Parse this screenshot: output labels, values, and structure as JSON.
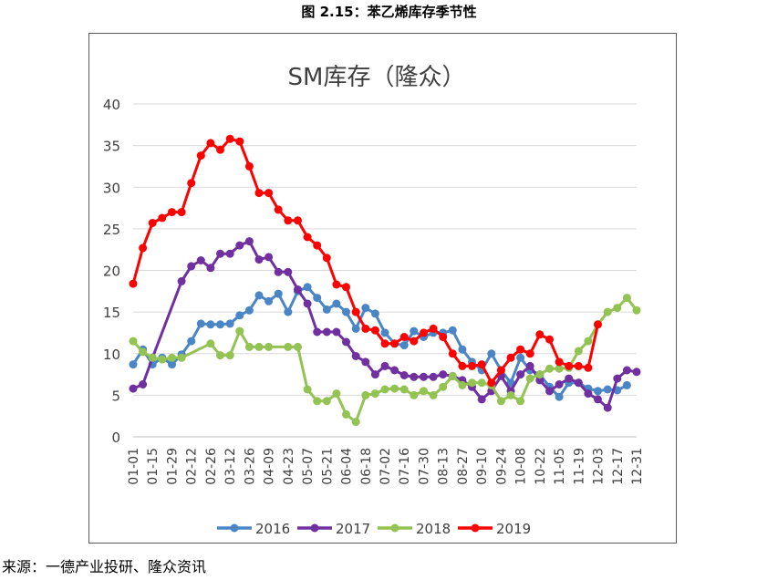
{
  "caption": "图 2.15：苯乙烯库存季节性",
  "source": "来源：一德产业投研、隆众资讯",
  "chart_data": {
    "type": "line",
    "title": "SM库存（隆众）",
    "xlabel": "",
    "ylabel": "",
    "ylim": [
      0,
      40
    ],
    "yticks": [
      "0",
      "5",
      "10",
      "15",
      "20",
      "25",
      "30",
      "35",
      "40"
    ],
    "grid": true,
    "legend_position": "bottom",
    "x_tick_labels": [
      "01-01",
      "01-15",
      "01-29",
      "02-12",
      "02-26",
      "03-12",
      "03-26",
      "04-09",
      "04-23",
      "05-07",
      "05-21",
      "06-04",
      "06-18",
      "07-02",
      "07-16",
      "07-30",
      "08-13",
      "08-27",
      "09-10",
      "09-24",
      "10-08",
      "10-22",
      "11-05",
      "11-19",
      "12-03",
      "12-17",
      "12-31"
    ],
    "series": [
      {
        "name": "2016",
        "color": "#4a86c5",
        "points": [
          [
            0,
            8.7
          ],
          [
            0.5,
            10.5
          ],
          [
            1,
            8.7
          ],
          [
            1.5,
            9.5
          ],
          [
            2,
            8.7
          ],
          [
            2.5,
            9.9
          ],
          [
            3,
            11.5
          ],
          [
            3.5,
            13.6
          ],
          [
            4,
            13.5
          ],
          [
            4.5,
            13.5
          ],
          [
            5,
            13.6
          ],
          [
            5.5,
            14.6
          ],
          [
            6,
            15.2
          ],
          [
            6.5,
            17
          ],
          [
            7,
            16.3
          ],
          [
            7.5,
            17.2
          ],
          [
            8,
            15
          ],
          [
            8.5,
            17.5
          ],
          [
            9,
            18
          ],
          [
            9.5,
            16.7
          ],
          [
            10,
            15.3
          ],
          [
            10.5,
            16
          ],
          [
            11,
            15
          ],
          [
            11.5,
            13
          ],
          [
            12,
            15.5
          ],
          [
            12.5,
            14.8
          ],
          [
            13,
            12.5
          ],
          [
            13.5,
            11.2
          ],
          [
            14,
            11
          ],
          [
            14.5,
            12.7
          ],
          [
            15,
            12
          ],
          [
            15.5,
            12.5
          ],
          [
            16,
            12.5
          ],
          [
            16.5,
            12.8
          ],
          [
            17,
            10.5
          ],
          [
            17.5,
            9
          ],
          [
            18,
            8
          ],
          [
            18.5,
            10
          ],
          [
            19,
            8
          ],
          [
            19.5,
            6.5
          ],
          [
            20,
            9.5
          ],
          [
            20.5,
            8
          ],
          [
            21,
            7.5
          ],
          [
            21.5,
            6
          ],
          [
            22,
            4.8
          ],
          [
            22.5,
            6.5
          ],
          [
            23,
            6.5
          ],
          [
            23.5,
            5.8
          ],
          [
            24,
            5.5
          ],
          [
            24.5,
            5.7
          ],
          [
            25,
            5.6
          ],
          [
            25.5,
            6.2
          ]
        ]
      },
      {
        "name": "2017",
        "color": "#7030a0",
        "points": [
          [
            0,
            5.8
          ],
          [
            0.5,
            6.3
          ],
          [
            1,
            9.5
          ],
          [
            2.5,
            18.7
          ],
          [
            3,
            20.5
          ],
          [
            3.5,
            21.2
          ],
          [
            4,
            20.3
          ],
          [
            4.5,
            22
          ],
          [
            5,
            22
          ],
          [
            5.5,
            23
          ],
          [
            6,
            23.5
          ],
          [
            6.5,
            21.3
          ],
          [
            7,
            21.6
          ],
          [
            7.5,
            19.8
          ],
          [
            8,
            19.8
          ],
          [
            8.5,
            17.7
          ],
          [
            9,
            16
          ],
          [
            9.5,
            12.6
          ],
          [
            10,
            12.6
          ],
          [
            10.5,
            12.6
          ],
          [
            11,
            11.4
          ],
          [
            11.5,
            9.7
          ],
          [
            12,
            9
          ],
          [
            12.5,
            7.5
          ],
          [
            13,
            8.5
          ],
          [
            13.5,
            8
          ],
          [
            14,
            7.4
          ],
          [
            14.5,
            7.2
          ],
          [
            15,
            7.2
          ],
          [
            15.5,
            7.2
          ],
          [
            16,
            7.5
          ],
          [
            16.5,
            7.3
          ],
          [
            17,
            6.8
          ],
          [
            17.5,
            6
          ],
          [
            18,
            4.5
          ],
          [
            18.5,
            5.5
          ],
          [
            19,
            7.3
          ],
          [
            19.5,
            5.5
          ],
          [
            20,
            7.5
          ],
          [
            20.5,
            8.5
          ],
          [
            21,
            6.8
          ],
          [
            21.5,
            5.5
          ],
          [
            22,
            6.3
          ],
          [
            22.5,
            7
          ],
          [
            23,
            6.5
          ],
          [
            23.5,
            5.2
          ],
          [
            24,
            4.5
          ],
          [
            24.5,
            3.5
          ],
          [
            25,
            7
          ],
          [
            25.5,
            8
          ],
          [
            26,
            7.8
          ]
        ]
      },
      {
        "name": "2018",
        "color": "#92c353",
        "points": [
          [
            0,
            11.5
          ],
          [
            0.5,
            10.2
          ],
          [
            1,
            9.5
          ],
          [
            1.5,
            9.3
          ],
          [
            2,
            9.5
          ],
          [
            2.5,
            9.5
          ],
          [
            4,
            11.2
          ],
          [
            4.5,
            9.8
          ],
          [
            5,
            9.8
          ],
          [
            5.5,
            12.7
          ],
          [
            6,
            10.8
          ],
          [
            6.5,
            10.8
          ],
          [
            7,
            10.8
          ],
          [
            8,
            10.8
          ],
          [
            8.5,
            10.8
          ],
          [
            9,
            5.7
          ],
          [
            9.5,
            4.3
          ],
          [
            10,
            4.3
          ],
          [
            10.5,
            5.2
          ],
          [
            11,
            2.7
          ],
          [
            11.5,
            1.8
          ],
          [
            12,
            5
          ],
          [
            12.5,
            5.2
          ],
          [
            13,
            5.7
          ],
          [
            13.5,
            5.8
          ],
          [
            14,
            5.7
          ],
          [
            14.5,
            5
          ],
          [
            15,
            5.5
          ],
          [
            15.5,
            5
          ],
          [
            16,
            6
          ],
          [
            16.5,
            7.3
          ],
          [
            17,
            6.2
          ],
          [
            17.5,
            6.5
          ],
          [
            18,
            6.5
          ],
          [
            18.5,
            6.2
          ],
          [
            19,
            4.3
          ],
          [
            19.5,
            5
          ],
          [
            20,
            4.3
          ],
          [
            20.5,
            7
          ],
          [
            21,
            7.5
          ],
          [
            21.5,
            8.2
          ],
          [
            22,
            8.2
          ],
          [
            22.5,
            8.3
          ],
          [
            23,
            10.3
          ],
          [
            23.5,
            11.5
          ],
          [
            24,
            13.5
          ],
          [
            24.5,
            15
          ],
          [
            25,
            15.5
          ],
          [
            25.5,
            16.7
          ],
          [
            26,
            15.2
          ]
        ]
      },
      {
        "name": "2019",
        "color": "#ff0000",
        "points": [
          [
            0,
            18.4
          ],
          [
            0.5,
            22.7
          ],
          [
            1,
            25.7
          ],
          [
            1.5,
            26.3
          ],
          [
            2,
            27
          ],
          [
            2.5,
            27
          ],
          [
            3,
            30.5
          ],
          [
            3.5,
            33.8
          ],
          [
            4,
            35.3
          ],
          [
            4.5,
            34.5
          ],
          [
            5,
            35.8
          ],
          [
            5.5,
            35.5
          ],
          [
            6,
            32.5
          ],
          [
            6.5,
            29.3
          ],
          [
            7,
            29.3
          ],
          [
            7.5,
            27.3
          ],
          [
            8,
            26
          ],
          [
            8.5,
            26
          ],
          [
            9,
            24
          ],
          [
            9.5,
            23
          ],
          [
            10,
            21.5
          ],
          [
            10.5,
            18.3
          ],
          [
            11,
            18
          ],
          [
            11.5,
            15
          ],
          [
            12,
            13
          ],
          [
            12.5,
            12.8
          ],
          [
            13,
            11.2
          ],
          [
            13.5,
            11.2
          ],
          [
            14,
            12
          ],
          [
            14.5,
            11.5
          ],
          [
            15,
            12.5
          ],
          [
            15.5,
            13
          ],
          [
            16,
            12
          ],
          [
            16.5,
            10
          ],
          [
            17,
            8.5
          ],
          [
            17.5,
            8.5
          ],
          [
            18,
            8.7
          ],
          [
            18.5,
            6.5
          ],
          [
            19,
            8
          ],
          [
            19.5,
            9.5
          ],
          [
            20,
            10.5
          ],
          [
            20.5,
            10
          ],
          [
            21,
            12.3
          ],
          [
            21.5,
            11.7
          ],
          [
            22,
            9
          ],
          [
            22.5,
            8.5
          ],
          [
            23,
            8.5
          ],
          [
            23.5,
            8.3
          ],
          [
            24,
            13.5
          ]
        ]
      }
    ]
  }
}
